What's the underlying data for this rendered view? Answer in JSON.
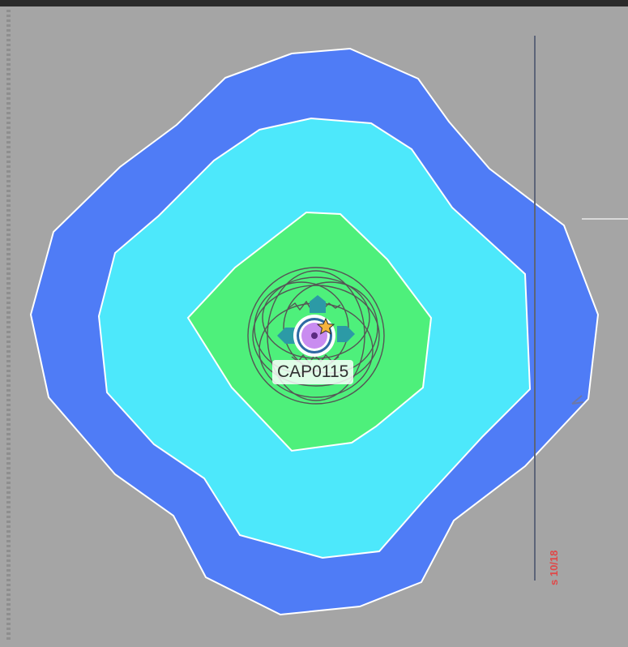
{
  "map": {
    "site_label": "CAP0115",
    "side_label": "s 10/18",
    "coverage_colors": {
      "outer": "#4f7cf6",
      "middle": "#4de8fb",
      "inner": "#4ef07b"
    },
    "marker_color": "#c98cf0",
    "star_color": "#f7b33c",
    "direction_arrow_color": "#2c9aa6",
    "icons": [
      "site-marker-icon",
      "star-icon",
      "direction-arrow-icon"
    ]
  }
}
